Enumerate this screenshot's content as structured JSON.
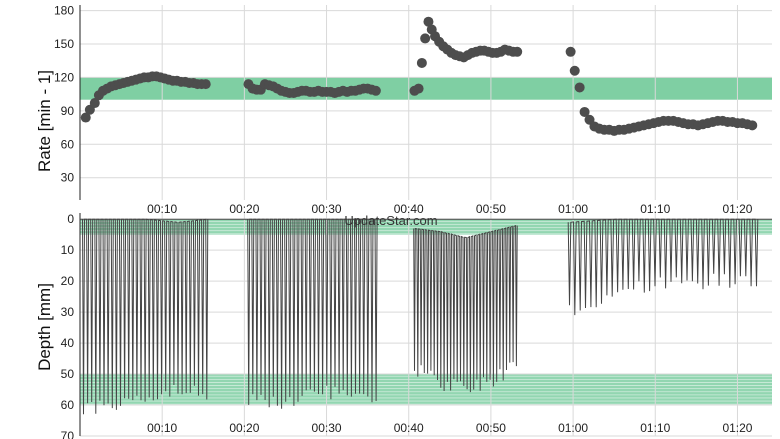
{
  "watermark": "UpdateStar.com",
  "colors": {
    "band": "#7fcfa3",
    "band_line": "#5fbf89",
    "marker": "#4d4d4d",
    "trace": "#444444",
    "grid": "#d9d9d9",
    "axis": "#222222"
  },
  "chart_data": [
    {
      "type": "scatter",
      "title": "",
      "ylabel": "Rate [min - 1]",
      "xlabel": "",
      "x_unit": "minutes",
      "xlim": [
        0,
        82.5
      ],
      "ylim": [
        10,
        185
      ],
      "yticks": [
        30,
        60,
        90,
        120,
        150,
        180
      ],
      "xticks": [
        {
          "v": 10,
          "label": "00:10"
        },
        {
          "v": 20,
          "label": "00:20"
        },
        {
          "v": 30,
          "label": "00:30"
        },
        {
          "v": 40,
          "label": "00:40"
        },
        {
          "v": 50,
          "label": "00:50"
        },
        {
          "v": 60,
          "label": "01:00"
        },
        {
          "v": 70,
          "label": "01:10"
        },
        {
          "v": 80,
          "label": "01:20"
        }
      ],
      "grid": true,
      "target_band": [
        100,
        120
      ],
      "points": [
        [
          0.7,
          84
        ],
        [
          1.2,
          91
        ],
        [
          1.8,
          97
        ],
        [
          2.3,
          104
        ],
        [
          2.8,
          108
        ],
        [
          3.3,
          110
        ],
        [
          3.8,
          112
        ],
        [
          4.3,
          113
        ],
        [
          4.8,
          114
        ],
        [
          5.3,
          115
        ],
        [
          5.8,
          116
        ],
        [
          6.3,
          117
        ],
        [
          6.8,
          118
        ],
        [
          7.3,
          119
        ],
        [
          7.8,
          120
        ],
        [
          8.3,
          120
        ],
        [
          8.8,
          121
        ],
        [
          9.3,
          121
        ],
        [
          9.8,
          120
        ],
        [
          10.3,
          119
        ],
        [
          10.8,
          118
        ],
        [
          11.3,
          117
        ],
        [
          11.8,
          117
        ],
        [
          12.3,
          116
        ],
        [
          12.8,
          116
        ],
        [
          13.3,
          115
        ],
        [
          13.8,
          115
        ],
        [
          14.3,
          114
        ],
        [
          14.8,
          114
        ],
        [
          15.3,
          114
        ],
        [
          20.5,
          114
        ],
        [
          21.0,
          110
        ],
        [
          21.5,
          109
        ],
        [
          22.0,
          109
        ],
        [
          22.5,
          114
        ],
        [
          23.0,
          113
        ],
        [
          23.5,
          112
        ],
        [
          24.0,
          110
        ],
        [
          24.5,
          108
        ],
        [
          25.0,
          107
        ],
        [
          25.5,
          106
        ],
        [
          26.0,
          106
        ],
        [
          26.5,
          107
        ],
        [
          27.0,
          108
        ],
        [
          27.5,
          108
        ],
        [
          28.0,
          107
        ],
        [
          28.5,
          107
        ],
        [
          29.0,
          108
        ],
        [
          29.5,
          107
        ],
        [
          30.0,
          107
        ],
        [
          30.5,
          107
        ],
        [
          31.0,
          106
        ],
        [
          31.5,
          107
        ],
        [
          32.0,
          108
        ],
        [
          32.5,
          107
        ],
        [
          33.0,
          108
        ],
        [
          33.5,
          108
        ],
        [
          34.0,
          109
        ],
        [
          34.5,
          110
        ],
        [
          35.0,
          110
        ],
        [
          35.5,
          109
        ],
        [
          36.0,
          108
        ],
        [
          40.7,
          108
        ],
        [
          41.2,
          110
        ],
        [
          41.6,
          133
        ],
        [
          42.0,
          155
        ],
        [
          42.4,
          170
        ],
        [
          42.8,
          163
        ],
        [
          43.2,
          157
        ],
        [
          43.7,
          152
        ],
        [
          44.2,
          148
        ],
        [
          44.7,
          145
        ],
        [
          45.2,
          142
        ],
        [
          45.7,
          140
        ],
        [
          46.2,
          139
        ],
        [
          46.7,
          138
        ],
        [
          47.2,
          140
        ],
        [
          47.7,
          142
        ],
        [
          48.2,
          143
        ],
        [
          48.7,
          144
        ],
        [
          49.2,
          144
        ],
        [
          49.7,
          143
        ],
        [
          50.2,
          142
        ],
        [
          50.7,
          142
        ],
        [
          51.2,
          143
        ],
        [
          51.7,
          145
        ],
        [
          52.2,
          144
        ],
        [
          52.7,
          143
        ],
        [
          53.2,
          143
        ],
        [
          59.7,
          143
        ],
        [
          60.2,
          126
        ],
        [
          60.8,
          111
        ],
        [
          61.4,
          89
        ],
        [
          62.0,
          82
        ],
        [
          62.6,
          76
        ],
        [
          63.2,
          74
        ],
        [
          63.8,
          73
        ],
        [
          64.4,
          73
        ],
        [
          65.0,
          72
        ],
        [
          65.6,
          73
        ],
        [
          66.2,
          73
        ],
        [
          66.8,
          74
        ],
        [
          67.4,
          75
        ],
        [
          68.0,
          76
        ],
        [
          68.6,
          77
        ],
        [
          69.2,
          78
        ],
        [
          69.8,
          79
        ],
        [
          70.4,
          80
        ],
        [
          71.0,
          81
        ],
        [
          71.6,
          81
        ],
        [
          72.2,
          81
        ],
        [
          72.8,
          80
        ],
        [
          73.4,
          79
        ],
        [
          74.0,
          78
        ],
        [
          74.6,
          78
        ],
        [
          75.2,
          77
        ],
        [
          75.8,
          78
        ],
        [
          76.4,
          79
        ],
        [
          77.0,
          80
        ],
        [
          77.6,
          81
        ],
        [
          78.2,
          81
        ],
        [
          78.8,
          80
        ],
        [
          79.4,
          80
        ],
        [
          80.0,
          79
        ],
        [
          80.6,
          79
        ],
        [
          81.2,
          78
        ],
        [
          81.8,
          77
        ]
      ]
    },
    {
      "type": "line",
      "title": "",
      "ylabel": "Depth [mm]",
      "xlabel": "",
      "x_unit": "minutes",
      "xlim": [
        0,
        82.5
      ],
      "ylim": [
        70,
        -2
      ],
      "yticks": [
        0,
        10,
        20,
        30,
        40,
        50,
        60,
        70
      ],
      "xticks": [
        {
          "v": 10,
          "label": "00:10"
        },
        {
          "v": 20,
          "label": "00:20"
        },
        {
          "v": 30,
          "label": "00:30"
        },
        {
          "v": 40,
          "label": "00:40"
        },
        {
          "v": 50,
          "label": "00:50"
        },
        {
          "v": 60,
          "label": "01:00"
        },
        {
          "v": 70,
          "label": "01:10"
        },
        {
          "v": 80,
          "label": "01:20"
        }
      ],
      "grid": true,
      "target_bands": [
        [
          0,
          5
        ],
        [
          50,
          60
        ]
      ],
      "segments": [
        {
          "start": 0.3,
          "end": 15.6,
          "period": 0.5,
          "top": [
            0,
            0,
            0,
            1,
            0
          ],
          "bottom": [
            62,
            60,
            57,
            55,
            57
          ]
        },
        {
          "start": 20.4,
          "end": 36.3,
          "period": 0.5,
          "top": [
            0,
            0,
            0,
            0,
            0
          ],
          "bottom": [
            58,
            59,
            57,
            55,
            58
          ]
        },
        {
          "start": 40.6,
          "end": 53.1,
          "period": 0.4,
          "top": [
            3,
            4,
            6,
            4,
            2
          ],
          "bottom": [
            48,
            53,
            55,
            52,
            47
          ]
        },
        {
          "start": 59.4,
          "end": 82.3,
          "period": 0.65,
          "top": [
            1,
            0,
            0,
            0,
            0
          ],
          "bottom": [
            30,
            23,
            21,
            20,
            21
          ]
        }
      ],
      "baseline": 0
    }
  ]
}
